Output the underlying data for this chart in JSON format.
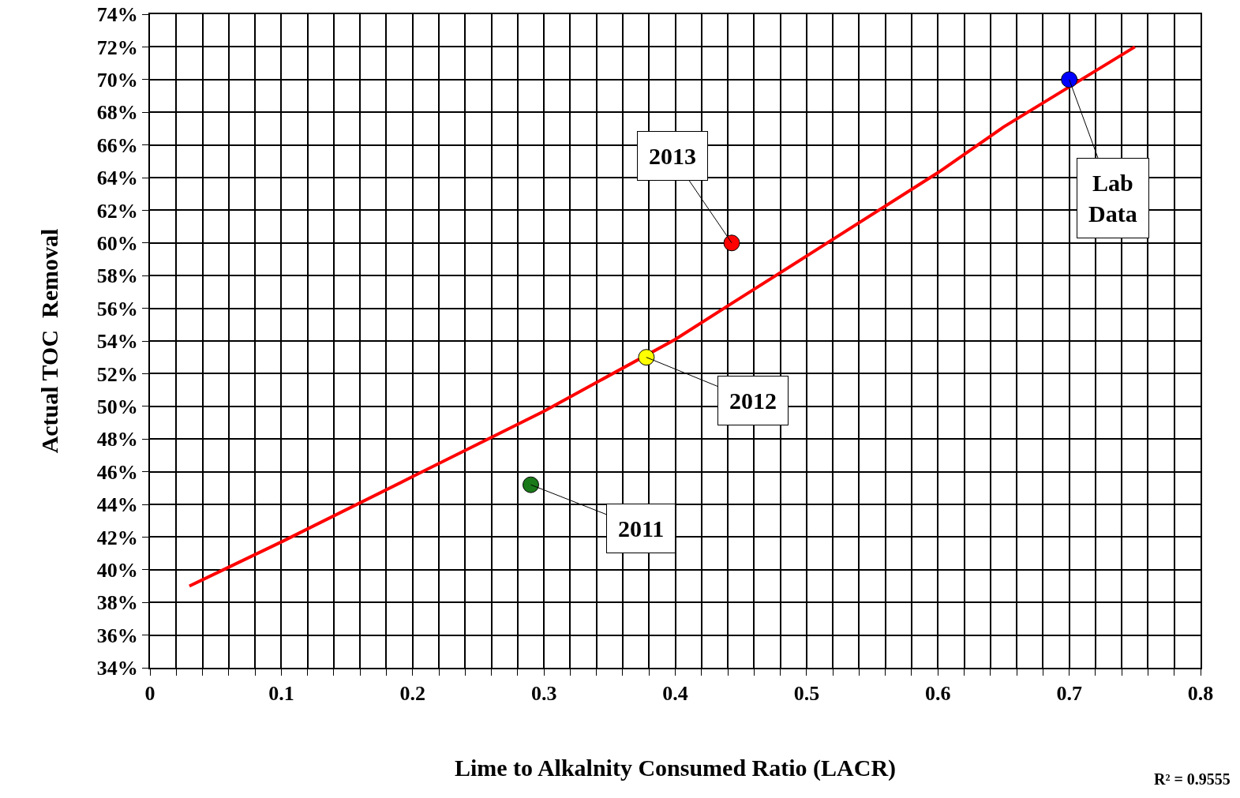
{
  "chart_data": {
    "type": "scatter",
    "xlabel": "Lime to Alkalnity Consumed Ratio (LACR)",
    "ylabel": "Actual TOC  Removal",
    "xlim": [
      0,
      0.8
    ],
    "xticks": [
      0,
      {
        "value": 0.02,
        "label": null
      },
      {
        "value": 0.04,
        "label": null
      },
      {
        "value": 0.06,
        "label": null
      },
      {
        "value": 0.08,
        "label": null
      },
      0.1,
      {
        "value": 0.12,
        "label": null
      },
      {
        "value": 0.14,
        "label": null
      },
      {
        "value": 0.16,
        "label": null
      },
      {
        "value": 0.18,
        "label": null
      },
      0.2,
      {
        "value": 0.22,
        "label": null
      },
      {
        "value": 0.24,
        "label": null
      },
      {
        "value": 0.26,
        "label": null
      },
      {
        "value": 0.28,
        "label": null
      },
      0.3,
      {
        "value": 0.32,
        "label": null
      },
      {
        "value": 0.34,
        "label": null
      },
      {
        "value": 0.36,
        "label": null
      },
      {
        "value": 0.38,
        "label": null
      },
      0.4,
      {
        "value": 0.42,
        "label": null
      },
      {
        "value": 0.44,
        "label": null
      },
      {
        "value": 0.46,
        "label": null
      },
      {
        "value": 0.48,
        "label": null
      },
      0.5,
      {
        "value": 0.52,
        "label": null
      },
      {
        "value": 0.54,
        "label": null
      },
      {
        "value": 0.56,
        "label": null
      },
      {
        "value": 0.58,
        "label": null
      },
      0.6,
      {
        "value": 0.62,
        "label": null
      },
      {
        "value": 0.64,
        "label": null
      },
      {
        "value": 0.66,
        "label": null
      },
      {
        "value": 0.68,
        "label": null
      },
      0.7,
      {
        "value": 0.72,
        "label": null
      },
      {
        "value": 0.74,
        "label": null
      },
      {
        "value": 0.76,
        "label": null
      },
      {
        "value": 0.78,
        "label": null
      },
      0.8
    ],
    "ylim": [
      34,
      74
    ],
    "yticks": [
      {
        "value": 34,
        "label": "34%"
      },
      {
        "value": 36,
        "label": "36%"
      },
      {
        "value": 38,
        "label": "38%"
      },
      {
        "value": 40,
        "label": "40%"
      },
      {
        "value": 42,
        "label": "42%"
      },
      {
        "value": 44,
        "label": "44%"
      },
      {
        "value": 46,
        "label": "46%"
      },
      {
        "value": 48,
        "label": "48%"
      },
      {
        "value": 50,
        "label": "50%"
      },
      {
        "value": 52,
        "label": "52%"
      },
      {
        "value": 54,
        "label": "54%"
      },
      {
        "value": 56,
        "label": "56%"
      },
      {
        "value": 58,
        "label": "58%"
      },
      {
        "value": 60,
        "label": "60%"
      },
      {
        "value": 62,
        "label": "62%"
      },
      {
        "value": 64,
        "label": "64%"
      },
      {
        "value": 66,
        "label": "66%"
      },
      {
        "value": 68,
        "label": "68%"
      },
      {
        "value": 70,
        "label": "70%"
      },
      {
        "value": 72,
        "label": "72%"
      },
      {
        "value": 74,
        "label": "74%"
      }
    ],
    "grid": true,
    "series": [
      {
        "type": "line",
        "marker": "none",
        "x": [
          0.03,
          0.1,
          0.2,
          0.3,
          0.4,
          0.443,
          0.5,
          0.6,
          0.65,
          0.75
        ],
        "values": [
          39,
          41.7,
          45.7,
          49.7,
          54.1,
          56.3,
          59.2,
          64.3,
          67.1,
          72
        ],
        "color": "#ff0000"
      },
      {
        "marker": "circle",
        "x": [
          0.29,
          0.378,
          0.443,
          0.7
        ],
        "values": [
          45.2,
          53.0,
          60.0,
          70.0
        ],
        "colors": [
          "#1a7a1a",
          "#ffff00",
          "#ff0000",
          "#0000ff"
        ]
      }
    ],
    "annotations": [
      {
        "text": "2011",
        "x": 0.29,
        "y": 45.2
      },
      {
        "text": "2012",
        "x": 0.378,
        "y": 53.0
      },
      {
        "text": "2013",
        "x": 0.443,
        "y": 60.0
      },
      {
        "text": "Lab\nData",
        "x": 0.7,
        "y": 70.0
      },
      "R² = 0.9555"
    ]
  }
}
